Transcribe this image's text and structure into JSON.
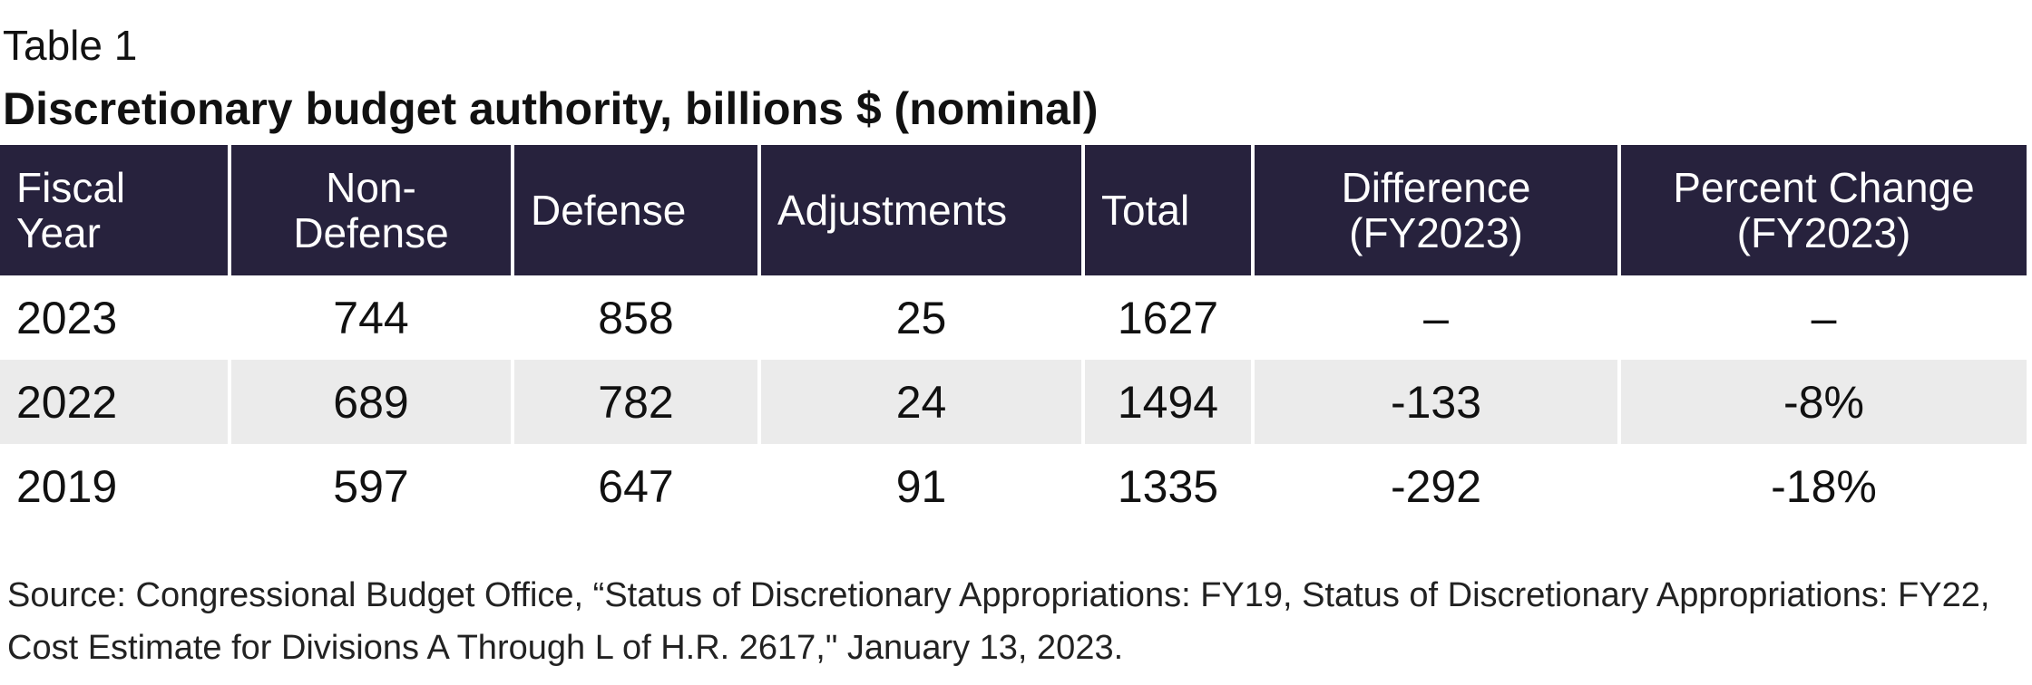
{
  "chart_data": {
    "type": "table",
    "label": "Table 1",
    "title": "Discretionary budget authority, billions $ (nominal)",
    "columns": [
      [
        "Fiscal",
        "Year"
      ],
      [
        "Non-",
        "Defense"
      ],
      [
        "Defense"
      ],
      [
        "Adjustments"
      ],
      [
        "Total"
      ],
      [
        "Difference",
        "(FY2023)"
      ],
      [
        "Percent Change",
        "(FY2023)"
      ]
    ],
    "rows": [
      [
        "2023",
        "744",
        "858",
        "25",
        "1627",
        "–",
        "–"
      ],
      [
        "2022",
        "689",
        "782",
        "24",
        "1494",
        "-133",
        "-8%"
      ],
      [
        "2019",
        "597",
        "647",
        "91",
        "1335",
        "-292",
        "-18%"
      ]
    ],
    "source": "Source: Congressional Budget Office, “Status of Discretionary Appropriations: FY19, Status of Discretionary Appropriations: FY22, Cost Estimate for Divisions A Through L of H.R. 2617,\" January 13, 2023."
  },
  "colors": {
    "header_bg": "#27223d",
    "header_text": "#ffffff",
    "shaded_row": "#ebebeb"
  }
}
